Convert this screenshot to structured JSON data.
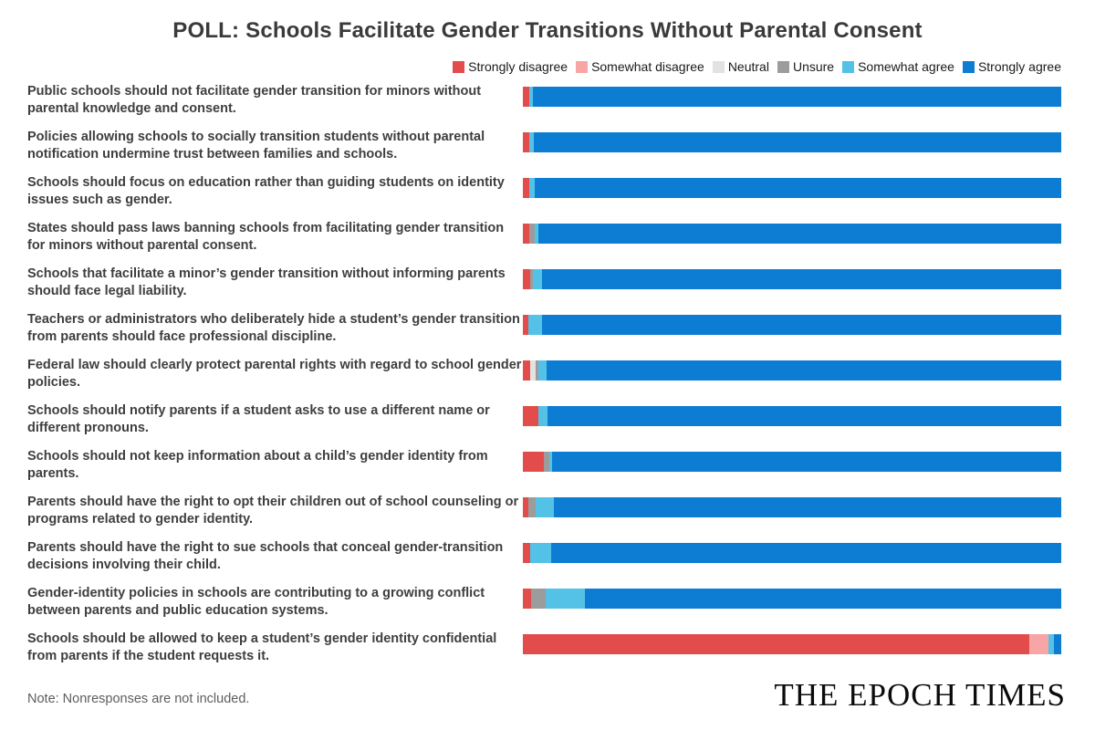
{
  "title": "POLL: Schools Facilitate Gender Transitions Without Parental Consent",
  "note": "Note: Nonresponses are not included.",
  "brand": "THE EPOCH TIMES",
  "chart_data": {
    "type": "bar",
    "stacked": true,
    "orientation": "horizontal",
    "unit": "percent of responses (bars span 0-100%)",
    "legend_position": "top-right",
    "categories": [
      "Strongly disagree",
      "Somewhat disagree",
      "Neutral",
      "Unsure",
      "Somewhat agree",
      "Strongly agree"
    ],
    "colors": [
      "#e24c4b",
      "#f8a6a5",
      "#e2e2e2",
      "#9c9c9c",
      "#54c2e7",
      "#0d7dd4"
    ],
    "rows": [
      {
        "statement": "Public schools should not facilitate gender transition for minors without parental knowledge and consent.",
        "values": [
          1.2,
          0,
          0,
          0,
          0.7,
          98.1
        ]
      },
      {
        "statement": "Policies allowing schools to socially transition students without parental notification undermine trust between families and schools.",
        "values": [
          1.2,
          0,
          0,
          0,
          0.8,
          98.0
        ]
      },
      {
        "statement": "Schools should focus on education rather than guiding students on identity issues such as gender.",
        "values": [
          1.2,
          0,
          0,
          0,
          1.0,
          97.8
        ]
      },
      {
        "statement": "States should pass laws banning schools from facilitating gender transition for minors without parental consent.",
        "values": [
          1.2,
          0,
          0,
          1.0,
          0.6,
          97.2
        ]
      },
      {
        "statement": "Schools that facilitate a minor’s gender transition without informing parents should face legal liability.",
        "values": [
          1.3,
          0,
          0,
          0.5,
          1.8,
          96.4
        ]
      },
      {
        "statement": "Teachers or administrators who deliberately hide a student’s gender transition from parents should face professional discipline.",
        "values": [
          1.1,
          0,
          0,
          0,
          2.4,
          96.5
        ]
      },
      {
        "statement": "Federal law should clearly protect parental rights with regard to school gender policies.",
        "values": [
          1.3,
          0,
          1.0,
          0.6,
          1.5,
          95.6
        ]
      },
      {
        "statement": "Schools should notify parents if a student asks to use a different name or different pronouns.",
        "values": [
          2.8,
          0,
          0,
          0,
          1.7,
          95.5
        ]
      },
      {
        "statement": "Schools should not keep information about a child’s gender identity from parents.",
        "values": [
          3.9,
          0,
          0,
          1.0,
          0.6,
          94.5
        ]
      },
      {
        "statement": "Parents should have the right to opt their children out of school counseling or programs related to gender identity.",
        "values": [
          1.1,
          0,
          0,
          1.3,
          3.3,
          94.3
        ]
      },
      {
        "statement": "Parents should have the right to sue schools that conceal gender-transition decisions involving their child.",
        "values": [
          1.3,
          0,
          0,
          0,
          4.0,
          94.7
        ]
      },
      {
        "statement": "Gender-identity policies in schools are contributing to a growing conflict between parents and public education systems.",
        "values": [
          1.5,
          0,
          0,
          2.8,
          7.2,
          88.5
        ]
      },
      {
        "statement": "Schools should be allowed to keep a student’s gender identity confidential from parents if the student requests it.",
        "values": [
          94.0,
          3.6,
          0,
          0,
          1.1,
          1.3
        ]
      }
    ]
  }
}
